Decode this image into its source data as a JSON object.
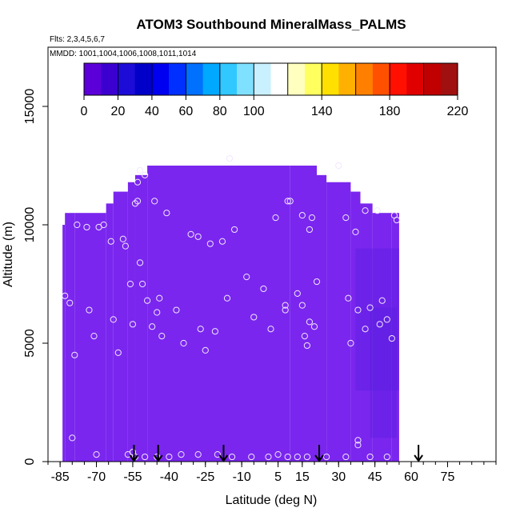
{
  "chart_data": {
    "type": "heatmap",
    "title": "ATOM3 Southbound MineralMass_PALMS",
    "flights_label": "Flts: 2,3,4,5,6,7",
    "mmdd_label": "MMDD: 1001,1004,1006,1008,1011,1014",
    "xlabel": "Latitude (deg N)",
    "ylabel": "Altitude (m)",
    "xlim": [
      -90,
      95
    ],
    "ylim": [
      0,
      17500
    ],
    "x_ticks": [
      -85,
      -70,
      -55,
      -40,
      -25,
      -10,
      5,
      15,
      30,
      45,
      60,
      75
    ],
    "x_tick_labels": [
      "-85",
      "-70",
      "-55",
      "-40",
      "-25",
      "-10",
      "5",
      "15",
      "30",
      "45",
      "60",
      "75"
    ],
    "y_ticks": [
      0,
      5000,
      10000,
      15000
    ],
    "y_tick_labels": [
      "0",
      "5000",
      "10000",
      "15000"
    ],
    "colorbar": {
      "min": 0,
      "max": 220,
      "ticks": [
        0,
        20,
        40,
        60,
        80,
        100,
        140,
        180,
        220
      ],
      "tick_labels": [
        "0",
        "20",
        "40",
        "60",
        "80",
        "100",
        "140",
        "180",
        "220"
      ],
      "colors": [
        "#5b00d9",
        "#3b00d0",
        "#1d0bd8",
        "#0000c8",
        "#0000f0",
        "#0030ff",
        "#0070ff",
        "#00a8ff",
        "#30c8ff",
        "#80e0ff",
        "#c8f0ff",
        "#ffffff",
        "#ffffc0",
        "#ffff60",
        "#ffe000",
        "#ffb000",
        "#ff8000",
        "#ff5000",
        "#ff1000",
        "#e00000",
        "#c00000",
        "#a01010"
      ]
    },
    "field_color": "#7a26ee",
    "field_dark_color": "#5a1ee0",
    "field_columns": [
      [
        -84,
        -83,
        0,
        10000
      ],
      [
        -83,
        -79,
        0,
        10500
      ],
      [
        -79,
        -66,
        0,
        10500
      ],
      [
        -66,
        -63,
        0,
        10900
      ],
      [
        -63,
        -57,
        0,
        11400
      ],
      [
        -57,
        -54,
        0,
        11800
      ],
      [
        -54,
        -49,
        0,
        12100
      ],
      [
        -49,
        10,
        0,
        12500
      ],
      [
        10,
        21,
        0,
        12500
      ],
      [
        21,
        25,
        0,
        12100
      ],
      [
        25,
        35,
        0,
        11800
      ],
      [
        35,
        39,
        0,
        11400
      ],
      [
        39,
        44,
        0,
        10900
      ],
      [
        44,
        52,
        0,
        10500
      ],
      [
        52,
        55,
        0,
        10500
      ]
    ],
    "darker_regions": [
      [
        37,
        55,
        3000,
        9000
      ],
      [
        43,
        54,
        1000,
        6500
      ]
    ],
    "observations": [
      [
        -83,
        7000
      ],
      [
        -81,
        6700
      ],
      [
        -79,
        4500
      ],
      [
        -78,
        10000
      ],
      [
        -74,
        9900
      ],
      [
        -73,
        6400
      ],
      [
        -71,
        5300
      ],
      [
        -69,
        9900
      ],
      [
        -67,
        10000
      ],
      [
        -64,
        9300
      ],
      [
        -63,
        6000
      ],
      [
        -61,
        4600
      ],
      [
        -59,
        9400
      ],
      [
        -58,
        9100
      ],
      [
        -56,
        7500
      ],
      [
        -55,
        5800
      ],
      [
        -54,
        10900
      ],
      [
        -53,
        11000
      ],
      [
        -53,
        11800
      ],
      [
        -52,
        8400
      ],
      [
        -51,
        7500
      ],
      [
        -50,
        12100
      ],
      [
        -49,
        6800
      ],
      [
        -47,
        5700
      ],
      [
        -46,
        11000
      ],
      [
        -45,
        6300
      ],
      [
        -44,
        6900
      ],
      [
        -43,
        5300
      ],
      [
        -41,
        10500
      ],
      [
        -37,
        6400
      ],
      [
        -34,
        5000
      ],
      [
        -31,
        9600
      ],
      [
        -28,
        9500
      ],
      [
        -27,
        5600
      ],
      [
        -25,
        4700
      ],
      [
        -23,
        9200
      ],
      [
        -21,
        5500
      ],
      [
        -18,
        9300
      ],
      [
        -16,
        6900
      ],
      [
        -13,
        9800
      ],
      [
        -8,
        7800
      ],
      [
        -5,
        6100
      ],
      [
        -1,
        7300
      ],
      [
        2,
        5600
      ],
      [
        4,
        10300
      ],
      [
        8,
        6400
      ],
      [
        8,
        6600
      ],
      [
        9,
        11000
      ],
      [
        10,
        11000
      ],
      [
        13,
        7100
      ],
      [
        15,
        10400
      ],
      [
        15,
        6600
      ],
      [
        16,
        5300
      ],
      [
        17,
        4900
      ],
      [
        18,
        9800
      ],
      [
        18,
        5900
      ],
      [
        19,
        10300
      ],
      [
        20,
        5700
      ],
      [
        21,
        7600
      ],
      [
        30,
        12500
      ],
      [
        33,
        10300
      ],
      [
        34,
        6900
      ],
      [
        35,
        5000
      ],
      [
        37,
        9700
      ],
      [
        38,
        6400
      ],
      [
        41,
        10600
      ],
      [
        41,
        5600
      ],
      [
        43,
        6500
      ],
      [
        46,
        10600
      ],
      [
        47,
        5800
      ],
      [
        48,
        6800
      ],
      [
        50,
        6000
      ],
      [
        52,
        5200
      ],
      [
        53,
        10400
      ],
      [
        54,
        10200
      ],
      [
        -80,
        1000
      ],
      [
        -70,
        300
      ],
      [
        -57,
        300
      ],
      [
        -55,
        400
      ],
      [
        -54,
        200
      ],
      [
        -50,
        200
      ],
      [
        -45,
        200
      ],
      [
        -40,
        200
      ],
      [
        -35,
        300
      ],
      [
        -28,
        300
      ],
      [
        -20,
        300
      ],
      [
        -14,
        200
      ],
      [
        -6,
        200
      ],
      [
        1,
        200
      ],
      [
        5,
        300
      ],
      [
        9,
        200
      ],
      [
        13,
        200
      ],
      [
        17,
        200
      ],
      [
        25,
        200
      ],
      [
        33,
        200
      ],
      [
        38,
        700
      ],
      [
        38,
        900
      ],
      [
        43,
        200
      ],
      [
        50,
        200
      ],
      [
        -52,
        12300
      ],
      [
        -15,
        12800
      ]
    ],
    "flight_markers": [
      -54.5,
      -44.5,
      -17.5,
      22,
      63
    ]
  }
}
